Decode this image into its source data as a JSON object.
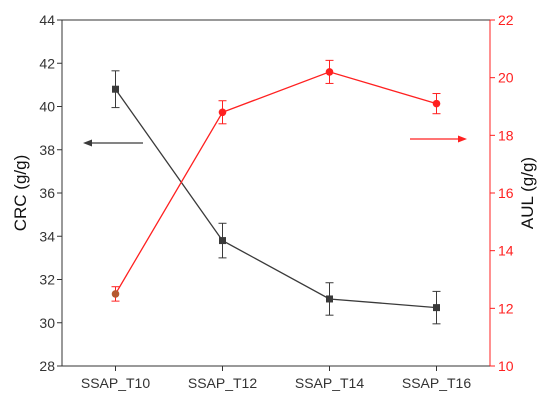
{
  "chart_data": {
    "type": "line",
    "categories": [
      "SSAP_T10",
      "SSAP_T12",
      "SSAP_T14",
      "SSAP_T16"
    ],
    "left_axis": {
      "label": "CRC (g/g)",
      "ylim": [
        28,
        44
      ],
      "ticks": [
        28,
        30,
        32,
        34,
        36,
        38,
        40,
        42,
        44
      ],
      "color": "#333333"
    },
    "right_axis": {
      "label": "AUL (g/g)",
      "ylim": [
        10,
        22
      ],
      "ticks": [
        10,
        12,
        14,
        16,
        18,
        20,
        22
      ],
      "color": "#ff2020"
    },
    "series": [
      {
        "axis": "left",
        "marker": "square",
        "color": "#3a3a3a",
        "values": [
          40.8,
          33.8,
          31.1,
          30.7
        ],
        "errors": [
          0.85,
          0.8,
          0.75,
          0.75
        ]
      },
      {
        "axis": "right",
        "marker": "circle",
        "color": "#ff2020",
        "values": [
          12.5,
          18.8,
          20.2,
          19.1
        ],
        "errors": [
          0.25,
          0.4,
          0.4,
          0.35
        ]
      }
    ],
    "annotations": [
      {
        "type": "arrow",
        "direction": "left",
        "points_to": "left_axis",
        "color": "#3a3a3a"
      },
      {
        "type": "arrow",
        "direction": "right",
        "points_to": "right_axis",
        "color": "#ff2020"
      }
    ],
    "grid": false,
    "legend": "none"
  }
}
